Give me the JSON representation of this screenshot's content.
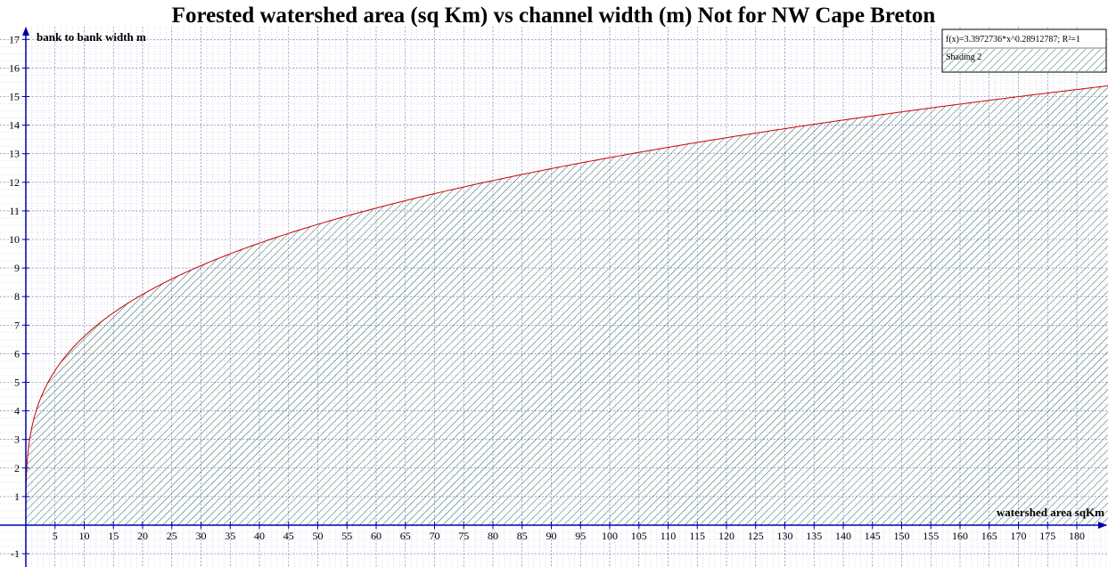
{
  "chart_data": {
    "type": "area",
    "title": "Forested watershed area (sq Km) vs channel width (m) Not for NW Cape Breton",
    "xlabel": "watershed area sqKm",
    "ylabel": "bank to bank width m",
    "xlim": [
      0,
      185
    ],
    "ylim": [
      -1,
      17
    ],
    "x_ticks": [
      5,
      10,
      15,
      20,
      25,
      30,
      35,
      40,
      45,
      50,
      55,
      60,
      65,
      70,
      75,
      80,
      85,
      90,
      95,
      100,
      105,
      110,
      115,
      120,
      125,
      130,
      135,
      140,
      145,
      150,
      155,
      160,
      165,
      170,
      175,
      180
    ],
    "y_ticks": [
      -1,
      1,
      2,
      3,
      4,
      5,
      6,
      7,
      8,
      9,
      10,
      11,
      12,
      13,
      14,
      15,
      16,
      17
    ],
    "grid": true,
    "legend_position": "top-right",
    "series": [
      {
        "name": "f(x)=3.3972736*x^0.28912787; R²=1",
        "type": "line",
        "color": "#cc0000",
        "formula": {
          "coefficient": 3.3972736,
          "exponent": 0.28912787
        }
      },
      {
        "name": "Shading 2",
        "type": "area",
        "color": "#2e6b5e",
        "pattern": "diagonal-hatch"
      }
    ]
  }
}
